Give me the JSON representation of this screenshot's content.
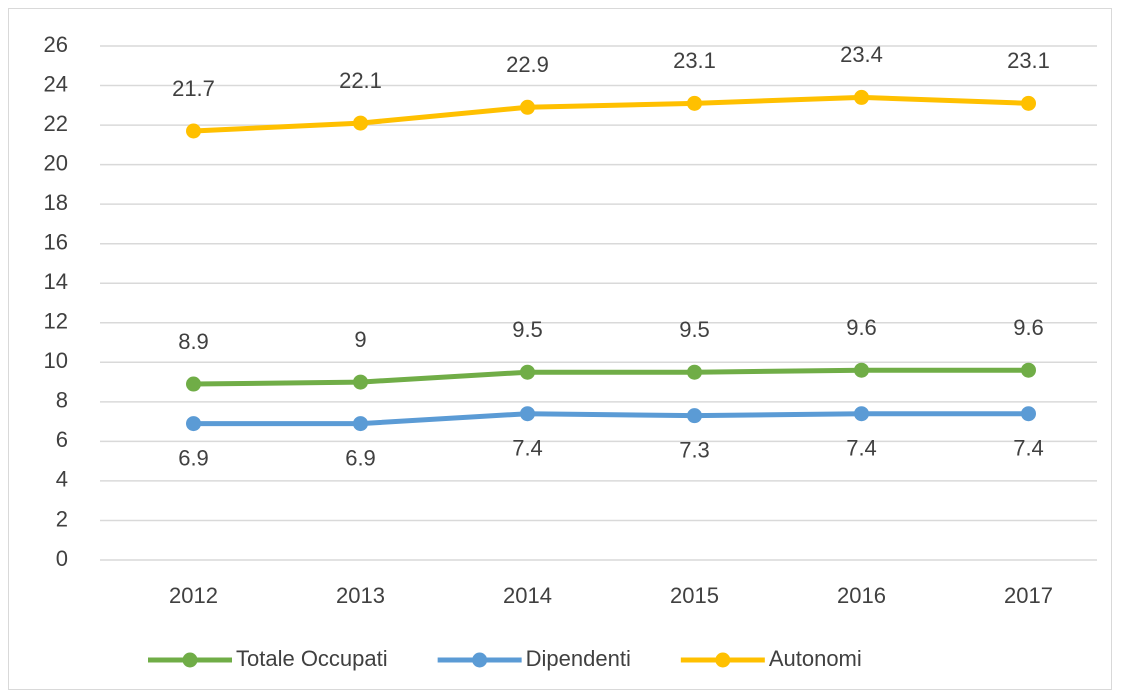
{
  "chart_data": {
    "type": "line",
    "categories": [
      "2012",
      "2013",
      "2014",
      "2015",
      "2016",
      "2017"
    ],
    "series": [
      {
        "name": "Totale Occupati",
        "color": "#70ad47",
        "values": [
          8.9,
          9,
          9.5,
          9.5,
          9.6,
          9.6
        ]
      },
      {
        "name": "Dipendenti",
        "color": "#5b9bd5",
        "values": [
          6.9,
          6.9,
          7.4,
          7.3,
          7.4,
          7.4
        ]
      },
      {
        "name": "Autonomi",
        "color": "#ffc000",
        "values": [
          21.7,
          22.1,
          22.9,
          23.1,
          23.4,
          23.1
        ]
      }
    ],
    "ylim": [
      0,
      26
    ],
    "yticks": [
      0,
      2,
      4,
      6,
      8,
      10,
      12,
      14,
      16,
      18,
      20,
      22,
      24,
      26
    ],
    "grid": true,
    "legend": "bottom"
  }
}
